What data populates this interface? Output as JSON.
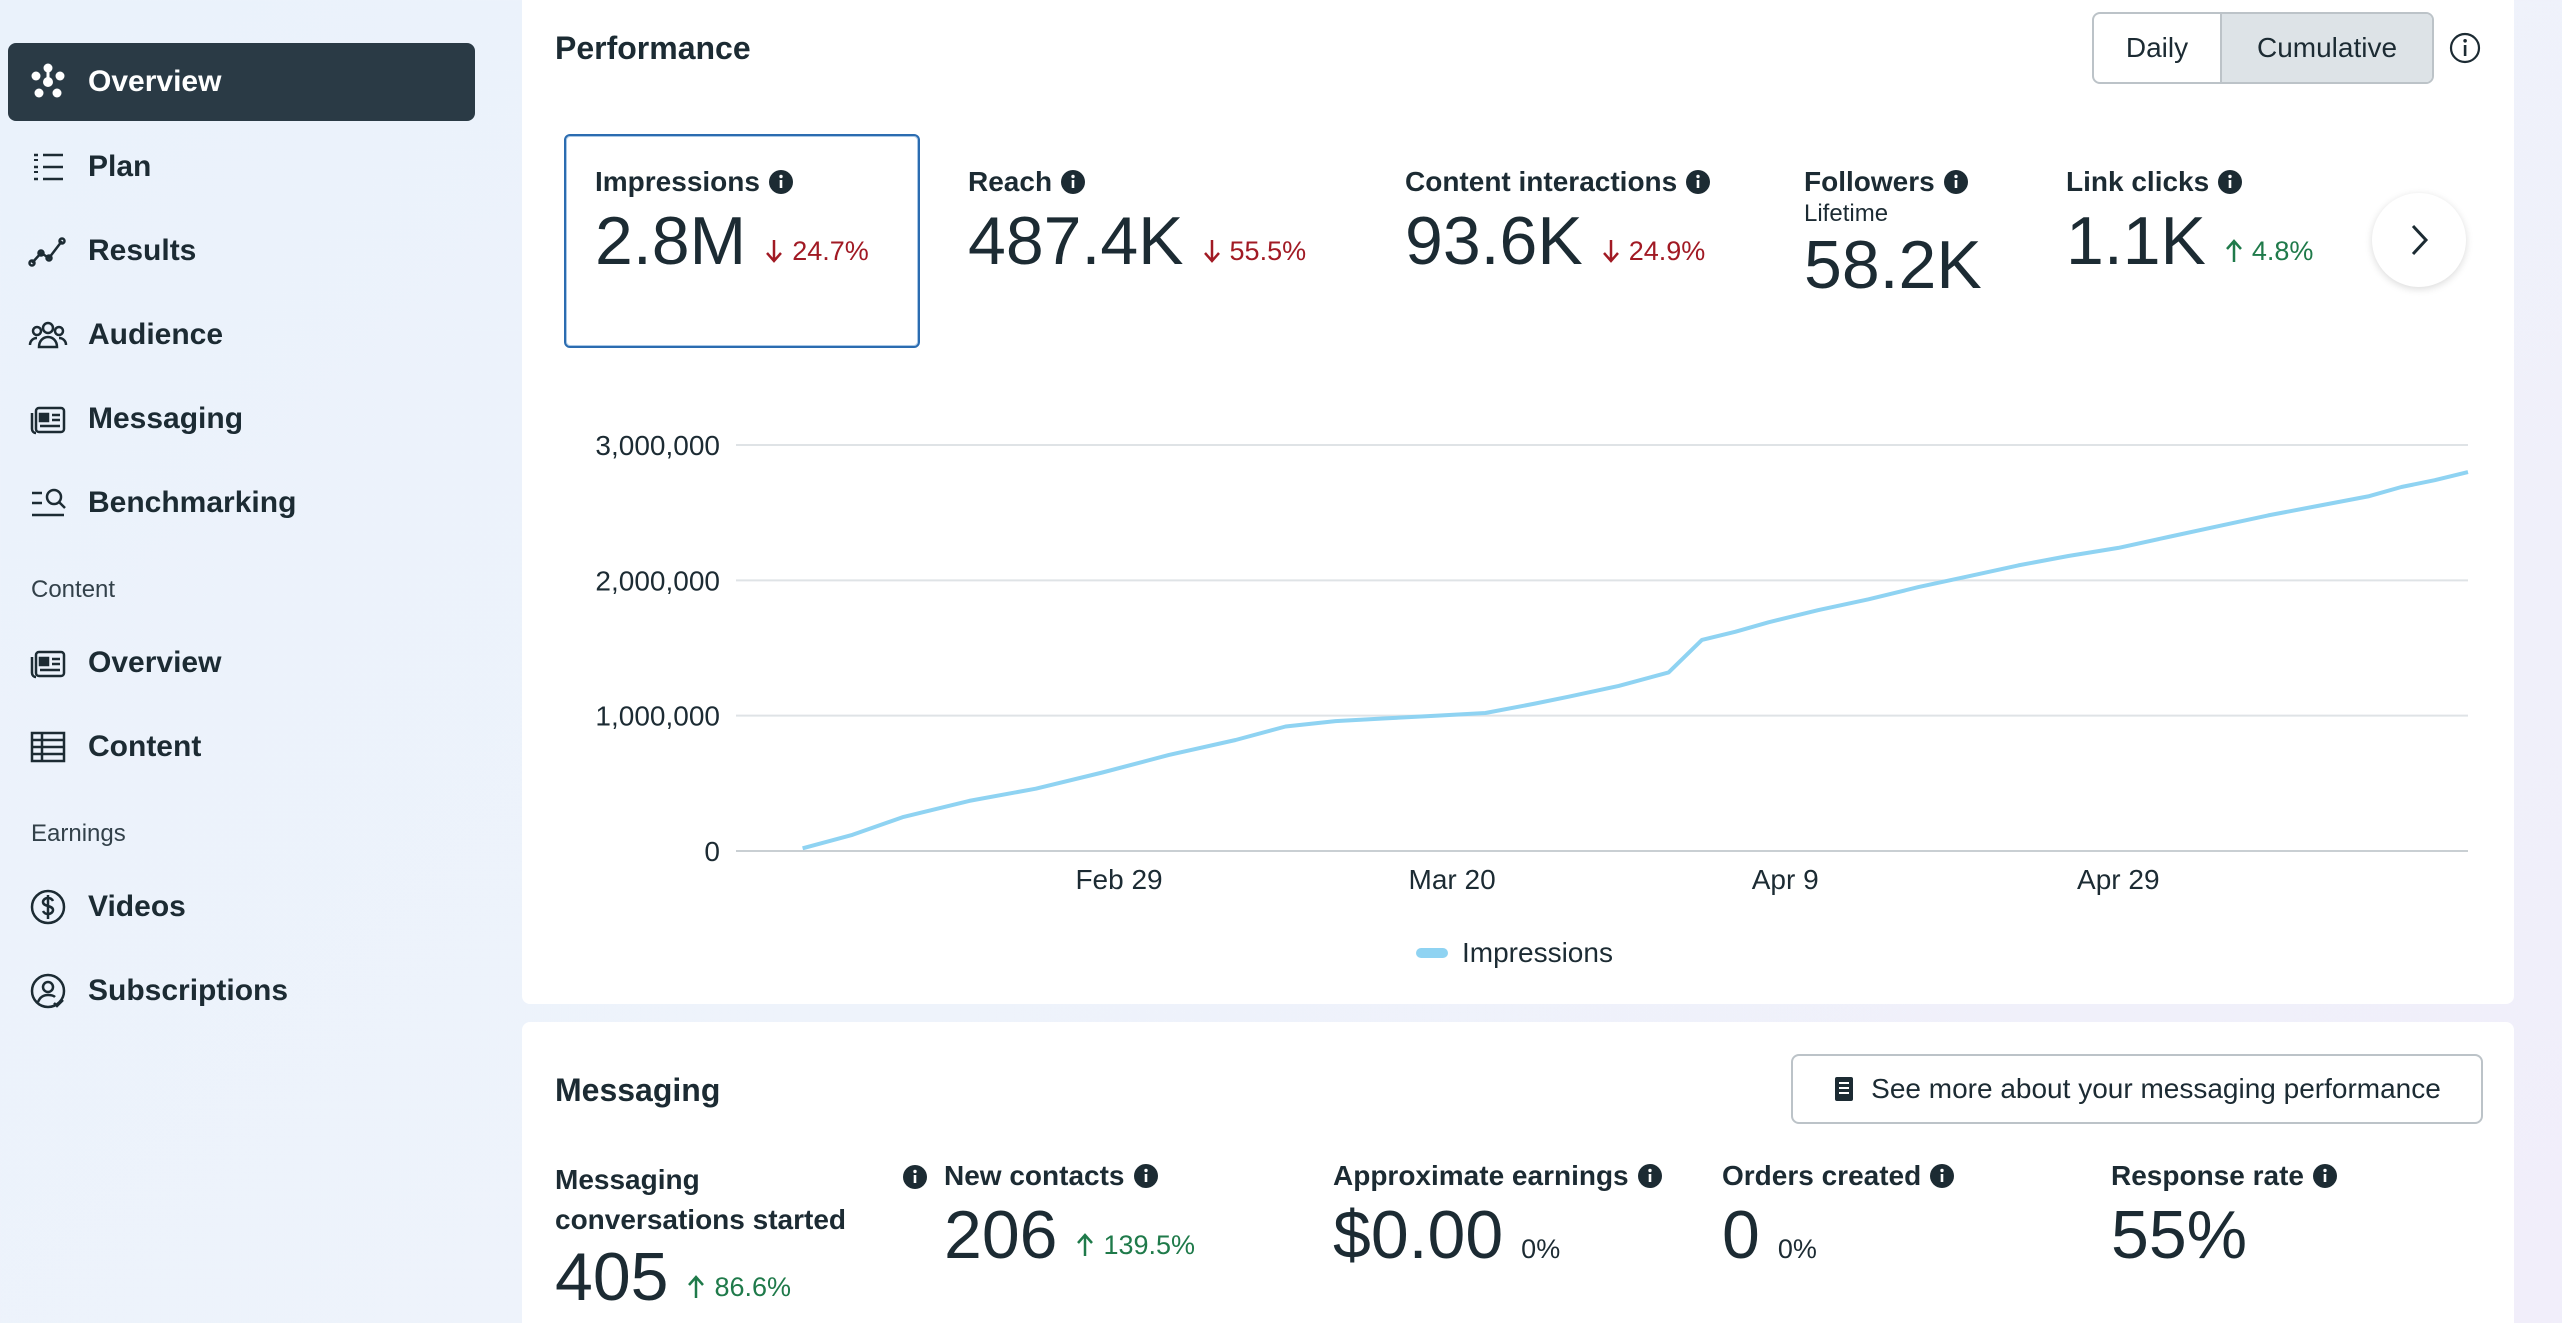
{
  "sidebar": {
    "items": [
      {
        "label": "Overview",
        "icon": "overview-icon",
        "active": true
      },
      {
        "label": "Plan",
        "icon": "plan-list-icon"
      },
      {
        "label": "Results",
        "icon": "results-trend-icon"
      },
      {
        "label": "Audience",
        "icon": "audience-people-icon"
      },
      {
        "label": "Messaging",
        "icon": "messaging-icon"
      },
      {
        "label": "Benchmarking",
        "icon": "benchmarking-icon"
      }
    ],
    "content_section": "Content",
    "content_items": [
      {
        "label": "Overview",
        "icon": "content-overview-icon"
      },
      {
        "label": "Content",
        "icon": "table-grid-icon"
      }
    ],
    "earnings_section": "Earnings",
    "earnings_items": [
      {
        "label": "Videos",
        "icon": "dollar-circle-icon"
      },
      {
        "label": "Subscriptions",
        "icon": "subscriber-icon"
      }
    ]
  },
  "performance": {
    "title": "Performance",
    "toggle": {
      "daily": "Daily",
      "cumulative": "Cumulative",
      "selected": "Cumulative"
    },
    "metrics": [
      {
        "label": "Impressions",
        "value": "2.8M",
        "delta": "24.7%",
        "direction": "down"
      },
      {
        "label": "Reach",
        "value": "487.4K",
        "delta": "55.5%",
        "direction": "down"
      },
      {
        "label": "Content interactions",
        "value": "93.6K",
        "delta": "24.9%",
        "direction": "down"
      },
      {
        "label": "Followers",
        "sub": "Lifetime",
        "value": "58.2K"
      },
      {
        "label": "Link clicks",
        "value": "1.1K",
        "delta": "4.8%",
        "direction": "up"
      }
    ],
    "legend": "Impressions"
  },
  "chart_data": {
    "type": "line",
    "title": "",
    "xlabel": "",
    "ylabel": "",
    "y_ticks": [
      "3,000,000",
      "2,000,000",
      "1,000,000",
      "0"
    ],
    "x_ticks": [
      "Feb 29",
      "Mar 20",
      "Apr 9",
      "Apr 29"
    ],
    "ylim": [
      0,
      3000000
    ],
    "xlim": [
      "2024-02-06",
      "2024-05-20"
    ],
    "grid": true,
    "legend_position": "bottom",
    "series": [
      {
        "name": "Impressions",
        "color": "#8fd3f2",
        "x": [
          "2024-02-10",
          "2024-02-13",
          "2024-02-16",
          "2024-02-20",
          "2024-02-24",
          "2024-02-28",
          "2024-03-03",
          "2024-03-07",
          "2024-03-10",
          "2024-03-13",
          "2024-03-16",
          "2024-03-19",
          "2024-03-22",
          "2024-03-25",
          "2024-03-27",
          "2024-03-30",
          "2024-04-02",
          "2024-04-04",
          "2024-04-06",
          "2024-04-08",
          "2024-04-11",
          "2024-04-14",
          "2024-04-17",
          "2024-04-20",
          "2024-04-23",
          "2024-04-26",
          "2024-04-29",
          "2024-05-02",
          "2024-05-05",
          "2024-05-08",
          "2024-05-11",
          "2024-05-14",
          "2024-05-16",
          "2024-05-18",
          "2024-05-20"
        ],
        "values": [
          20000,
          120000,
          250000,
          370000,
          460000,
          580000,
          710000,
          820000,
          920000,
          960000,
          980000,
          1000000,
          1020000,
          1090000,
          1140000,
          1220000,
          1320000,
          1560000,
          1620000,
          1690000,
          1780000,
          1860000,
          1950000,
          2030000,
          2110000,
          2180000,
          2240000,
          2320000,
          2400000,
          2480000,
          2550000,
          2620000,
          2690000,
          2740000,
          2800000
        ]
      }
    ]
  },
  "messaging": {
    "title": "Messaging",
    "button": "See more about your messaging performance",
    "metrics": [
      {
        "label_line1": "Messaging",
        "label_line2": "conversations started",
        "value": "405",
        "delta": "86.6%",
        "direction": "up"
      },
      {
        "label": "New contacts",
        "value": "206",
        "delta": "139.5%",
        "direction": "up"
      },
      {
        "label": "Approximate earnings",
        "value": "$0.00",
        "delta": "0%"
      },
      {
        "label": "Orders created",
        "value": "0",
        "delta": "0%"
      },
      {
        "label": "Response rate",
        "value": "55%"
      }
    ]
  }
}
